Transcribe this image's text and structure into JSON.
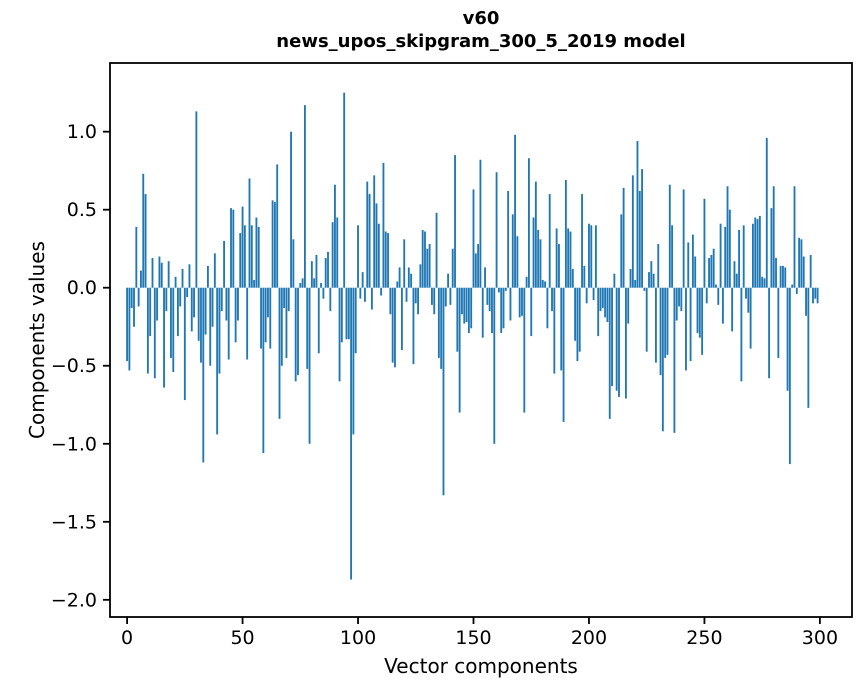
{
  "figure": {
    "background": "#ffffff"
  },
  "chart": {
    "title_line1": "v60",
    "title_line2": "news_upos_skipgram_300_5_2019 model",
    "xlabel": "Vector components",
    "ylabel": "Components values"
  },
  "chart_data": {
    "type": "bar",
    "title": "v60\nnews_upos_skipgram_300_5_2019 model",
    "xlabel": "Vector components",
    "ylabel": "Components values",
    "bar_color": "#1f77b4",
    "axis_color": "#000000",
    "grid": false,
    "legend_position": null,
    "n_components": 300,
    "x_start": 0,
    "bar_width": 0.8,
    "xlim": [
      -7.4,
      313.9
    ],
    "ylim": [
      -2.11,
      1.44
    ],
    "xticks": [
      {
        "label": "0",
        "value": 0
      },
      {
        "label": "50",
        "value": 50
      },
      {
        "label": "100",
        "value": 100
      },
      {
        "label": "150",
        "value": 150
      },
      {
        "label": "200",
        "value": 200
      },
      {
        "label": "250",
        "value": 250
      },
      {
        "label": "300",
        "value": 300
      }
    ],
    "yticks": [
      {
        "label": "−2.0",
        "value": -2.0
      },
      {
        "label": "−1.5",
        "value": -1.5
      },
      {
        "label": "−1.0",
        "value": -1.0
      },
      {
        "label": "−0.5",
        "value": -0.5
      },
      {
        "label": "0.0",
        "value": 0.0
      },
      {
        "label": "0.5",
        "value": 0.5
      },
      {
        "label": "1.0",
        "value": 1.0
      }
    ],
    "values": [
      -0.47,
      -0.53,
      -0.13,
      -0.25,
      0.39,
      -0.12,
      0.11,
      0.73,
      0.6,
      -0.55,
      -0.31,
      0.19,
      -0.58,
      -0.21,
      0.2,
      0.16,
      -0.64,
      -0.15,
      0.17,
      -0.45,
      -0.54,
      0.07,
      -0.31,
      -0.12,
      0.12,
      -0.72,
      -0.06,
      0.15,
      -0.28,
      -0.19,
      1.13,
      -0.34,
      -0.48,
      -1.12,
      -0.3,
      0.14,
      -0.5,
      -0.25,
      0.22,
      -0.94,
      -0.55,
      -0.15,
      0.3,
      -0.21,
      -0.46,
      0.51,
      0.5,
      -0.35,
      -0.21,
      0.35,
      0.52,
      0.4,
      -0.46,
      0.7,
      0.4,
      0.05,
      0.45,
      0.39,
      -0.39,
      -1.06,
      -0.35,
      -0.19,
      -0.39,
      0.56,
      0.55,
      0.79,
      -0.84,
      -0.5,
      -0.13,
      -0.45,
      -0.15,
      1.0,
      0.31,
      -0.6,
      -0.56,
      0.03,
      0.06,
      1.17,
      -0.52,
      -1.0,
      0.17,
      0.06,
      0.21,
      -0.42,
      0.03,
      -0.07,
      0.19,
      0.23,
      -0.15,
      0.42,
      0.66,
      0.45,
      -0.6,
      -0.35,
      1.25,
      -0.33,
      -0.33,
      -1.87,
      -0.94,
      -0.42,
      0.4,
      -0.07,
      0.1,
      -0.09,
      0.68,
      0.6,
      -0.14,
      0.72,
      0.54,
      0.41,
      -0.05,
      0.8,
      0.36,
      0.35,
      -0.17,
      -0.48,
      -0.51,
      0.04,
      0.13,
      -0.4,
      0.31,
      -0.09,
      0.13,
      0.09,
      -0.49,
      -0.1,
      -0.17,
      0.15,
      0.37,
      0.36,
      0.25,
      0.28,
      -0.11,
      -0.17,
      0.48,
      -0.45,
      -0.52,
      -1.33,
      -0.12,
      0.09,
      -0.11,
      0.25,
      0.85,
      -0.41,
      -0.8,
      -0.17,
      -0.23,
      -0.22,
      -0.29,
      -0.26,
      0.63,
      0.22,
      0.28,
      0.82,
      -0.32,
      0.13,
      -0.11,
      -0.15,
      -0.29,
      -1.0,
      0.74,
      -0.03,
      -0.29,
      -0.26,
      -0.02,
      0.62,
      -0.21,
      0.47,
      0.98,
      0.33,
      -0.19,
      -0.18,
      -0.8,
      0.07,
      0.83,
      -0.31,
      0.45,
      0.68,
      0.37,
      0.31,
      0.05,
      0.04,
      -0.26,
      0.6,
      -0.15,
      -0.55,
      0.38,
      0.28,
      -0.53,
      -0.86,
      0.69,
      0.38,
      0.36,
      0.12,
      -0.34,
      -0.47,
      -0.41,
      0.6,
      0.14,
      -0.1,
      0.41,
      0.4,
      -0.08,
      0.4,
      -0.31,
      -0.15,
      -0.13,
      -0.19,
      -0.22,
      -0.84,
      -0.63,
      0.09,
      -0.66,
      -0.7,
      0.47,
      0.64,
      -0.71,
      -0.23,
      0.12,
      0.72,
      0.05,
      0.94,
      0.62,
      0.76,
      -0.02,
      -0.41,
      0.1,
      0.17,
      0.09,
      -0.48,
      0.28,
      -0.56,
      -0.92,
      -0.45,
      -0.43,
      0.66,
      0.4,
      -0.93,
      -0.21,
      -0.12,
      -0.15,
      0.63,
      -0.53,
      0.29,
      -0.47,
      0.34,
      0.2,
      -0.29,
      -0.32,
      -0.43,
      0.57,
      -0.1,
      0.19,
      0.21,
      0.25,
      0.02,
      -0.11,
      0.41,
      -0.23,
      0.39,
      0.65,
      0.5,
      -0.28,
      0.17,
      0.09,
      0.37,
      -0.6,
      0.4,
      -0.07,
      -0.16,
      -0.39,
      0.41,
      0.45,
      0.44,
      0.46,
      0.07,
      0.06,
      0.96,
      -0.58,
      0.51,
      0.65,
      0.19,
      -0.45,
      0.14,
      0.14,
      0.13,
      -0.66,
      -1.13,
      0.02,
      0.65,
      -0.04,
      0.32,
      0.31,
      0.2,
      -0.18,
      -0.77,
      0.21,
      -0.1,
      -0.07,
      -0.1
    ]
  }
}
